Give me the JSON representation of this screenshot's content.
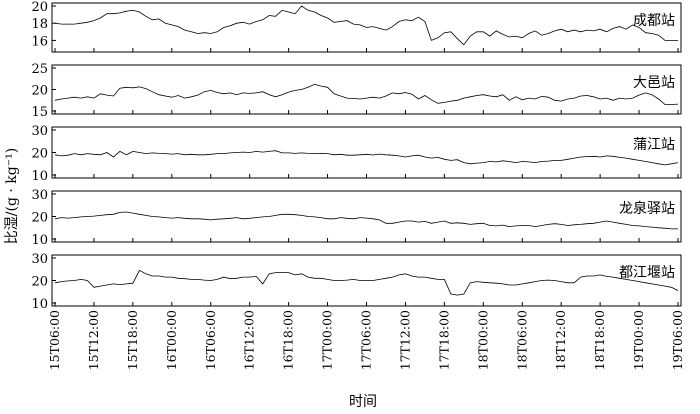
{
  "chart_data": {
    "type": "line",
    "ylabel": "比湿/(g · kg⁻¹)",
    "xlabel": "时间",
    "x_ticks": [
      "15T06:00",
      "15T12:00",
      "15T18:00",
      "16T00:00",
      "16T06:00",
      "16T12:00",
      "16T18:00",
      "17T00:00",
      "17T06:00",
      "17T12:00",
      "17T18:00",
      "18T00:00",
      "18T06:00",
      "18T12:00",
      "18T18:00",
      "19T00:00",
      "19T06:00"
    ],
    "x_range_hours": [
      6,
      102
    ],
    "grid": false,
    "panels": [
      {
        "name": "成都站",
        "ylim": [
          15,
          20
        ],
        "yticks": [
          16,
          18,
          20
        ],
        "values": [
          18.0,
          17.9,
          17.9,
          17.9,
          18.0,
          18.1,
          18.3,
          18.6,
          19.1,
          19.1,
          19.2,
          19.4,
          19.5,
          19.3,
          18.8,
          18.4,
          18.5,
          18.0,
          17.8,
          17.6,
          17.2,
          17.0,
          16.8,
          16.9,
          16.8,
          17.0,
          17.5,
          17.7,
          18.0,
          18.1,
          17.9,
          18.2,
          18.4,
          18.9,
          18.8,
          19.5,
          19.3,
          19.1,
          20.0,
          19.5,
          19.3,
          18.9,
          18.6,
          18.1,
          18.2,
          18.3,
          17.9,
          17.8,
          17.5,
          17.6,
          17.4,
          17.2,
          17.6,
          18.2,
          18.4,
          18.3,
          18.7,
          18.2,
          16.0,
          16.3,
          16.9,
          17.0,
          16.2,
          15.5,
          16.5,
          17.0,
          17.0,
          16.5,
          17.1,
          16.7,
          16.4,
          16.5,
          16.3,
          16.8,
          17.1,
          16.6,
          16.8,
          17.1,
          17.3,
          17.0,
          17.2,
          17.0,
          17.2,
          17.1,
          17.3,
          17.0,
          17.4,
          17.6,
          17.3,
          17.8,
          17.5,
          16.9,
          16.8,
          16.6,
          16.0,
          16.0,
          16.0
        ]
      },
      {
        "name": "大邑站",
        "ylim": [
          15,
          25
        ],
        "yticks": [
          15,
          20,
          25
        ],
        "values": [
          17.5,
          17.8,
          18.0,
          18.2,
          18.0,
          18.3,
          18.0,
          19.0,
          18.7,
          18.5,
          20.3,
          20.5,
          20.4,
          20.6,
          20.2,
          19.5,
          18.8,
          18.5,
          18.2,
          18.6,
          18.0,
          18.3,
          18.7,
          19.5,
          19.8,
          19.3,
          19.0,
          19.2,
          18.8,
          19.2,
          19.1,
          19.2,
          19.5,
          18.8,
          18.3,
          18.8,
          19.4,
          19.8,
          20.0,
          20.5,
          21.2,
          20.8,
          20.5,
          19.0,
          18.5,
          18.0,
          17.9,
          17.8,
          18.0,
          18.2,
          18.0,
          18.5,
          19.2,
          19.0,
          19.3,
          18.9,
          17.8,
          18.6,
          17.6,
          16.8,
          17.0,
          17.3,
          17.5,
          18.0,
          18.3,
          18.6,
          18.8,
          18.5,
          18.3,
          18.8,
          17.5,
          18.3,
          17.6,
          18.0,
          17.8,
          18.4,
          18.2,
          17.5,
          17.3,
          17.8,
          18.0,
          18.5,
          18.6,
          18.3,
          17.8,
          18.0,
          17.5,
          18.0,
          17.8,
          18.0,
          18.7,
          19.2,
          18.8,
          17.8,
          16.5,
          16.5,
          16.6
        ]
      },
      {
        "name": "蒲江站",
        "ylim": [
          10,
          30
        ],
        "yticks": [
          10,
          20,
          30
        ],
        "values": [
          19.0,
          18.5,
          18.8,
          19.5,
          19.0,
          19.5,
          19.2,
          19.0,
          20.0,
          18.0,
          20.5,
          19.0,
          20.5,
          20.0,
          19.5,
          19.8,
          19.6,
          19.5,
          19.3,
          19.5,
          19.0,
          19.2,
          19.0,
          19.0,
          19.2,
          19.5,
          19.5,
          19.8,
          20.0,
          20.2,
          20.0,
          20.5,
          20.2,
          20.5,
          20.8,
          19.8,
          19.8,
          19.6,
          19.8,
          19.6,
          19.5,
          19.6,
          19.5,
          19.0,
          19.2,
          18.8,
          18.8,
          19.0,
          19.2,
          18.9,
          19.3,
          19.0,
          18.8,
          18.5,
          18.0,
          18.5,
          18.8,
          18.0,
          17.5,
          17.8,
          17.0,
          16.5,
          16.8,
          15.5,
          15.0,
          15.3,
          15.5,
          16.0,
          15.8,
          16.3,
          16.0,
          15.5,
          16.0,
          15.8,
          15.5,
          16.0,
          16.2,
          16.5,
          16.5,
          17.0,
          17.5,
          18.0,
          18.2,
          18.3,
          18.0,
          18.5,
          18.3,
          17.8,
          17.5,
          17.0,
          16.5,
          16.0,
          15.5,
          15.0,
          14.5,
          15.0,
          15.5
        ]
      },
      {
        "name": "龙泉驿站",
        "ylim": [
          10,
          30
        ],
        "yticks": [
          10,
          20,
          30
        ],
        "values": [
          19.0,
          19.5,
          19.3,
          19.5,
          19.8,
          20.0,
          20.2,
          20.5,
          20.8,
          21.0,
          21.8,
          22.0,
          21.5,
          21.0,
          20.5,
          20.0,
          19.8,
          19.5,
          19.3,
          19.5,
          19.2,
          19.0,
          19.0,
          18.8,
          18.5,
          18.8,
          19.0,
          19.2,
          19.5,
          19.0,
          19.2,
          19.5,
          19.8,
          20.0,
          20.5,
          21.0,
          21.0,
          20.8,
          20.5,
          20.0,
          19.8,
          19.5,
          19.0,
          19.0,
          19.5,
          19.2,
          19.0,
          19.5,
          19.3,
          19.0,
          18.5,
          17.0,
          17.0,
          17.5,
          18.0,
          18.0,
          17.5,
          17.8,
          17.0,
          17.5,
          18.0,
          17.0,
          17.2,
          17.0,
          16.5,
          16.8,
          17.0,
          16.0,
          15.8,
          16.2,
          15.5,
          15.8,
          16.0,
          16.0,
          15.5,
          16.0,
          16.5,
          16.8,
          16.5,
          16.0,
          16.3,
          16.5,
          16.8,
          17.0,
          17.5,
          18.0,
          17.5,
          17.0,
          16.5,
          16.0,
          15.8,
          15.5,
          15.3,
          15.0,
          14.8,
          14.5,
          14.5
        ]
      },
      {
        "name": "都江堰站",
        "ylim": [
          10,
          30
        ],
        "yticks": [
          10,
          20,
          30
        ],
        "values": [
          19.0,
          19.5,
          19.8,
          20.0,
          20.5,
          20.0,
          17.0,
          17.5,
          18.0,
          18.5,
          18.2,
          18.5,
          18.8,
          24.5,
          23.0,
          22.0,
          22.0,
          21.5,
          21.5,
          21.0,
          20.8,
          20.5,
          20.5,
          20.2,
          20.0,
          20.5,
          21.5,
          20.8,
          21.0,
          21.5,
          21.5,
          21.8,
          18.5,
          23.0,
          23.5,
          23.5,
          23.5,
          22.5,
          23.0,
          21.5,
          21.0,
          21.0,
          20.5,
          20.0,
          20.0,
          20.2,
          20.5,
          20.0,
          20.0,
          20.0,
          20.5,
          21.0,
          21.5,
          22.5,
          23.0,
          22.0,
          21.5,
          21.5,
          21.0,
          20.5,
          20.5,
          14.0,
          13.5,
          14.0,
          19.0,
          19.5,
          19.2,
          19.0,
          18.8,
          18.5,
          18.0,
          18.0,
          18.5,
          19.0,
          19.5,
          20.0,
          20.2,
          20.0,
          19.5,
          19.0,
          19.0,
          21.5,
          22.0,
          22.0,
          22.5,
          21.8,
          21.5,
          21.0,
          20.5,
          20.0,
          19.5,
          19.0,
          18.5,
          18.0,
          17.5,
          17.0,
          15.5
        ]
      }
    ]
  }
}
